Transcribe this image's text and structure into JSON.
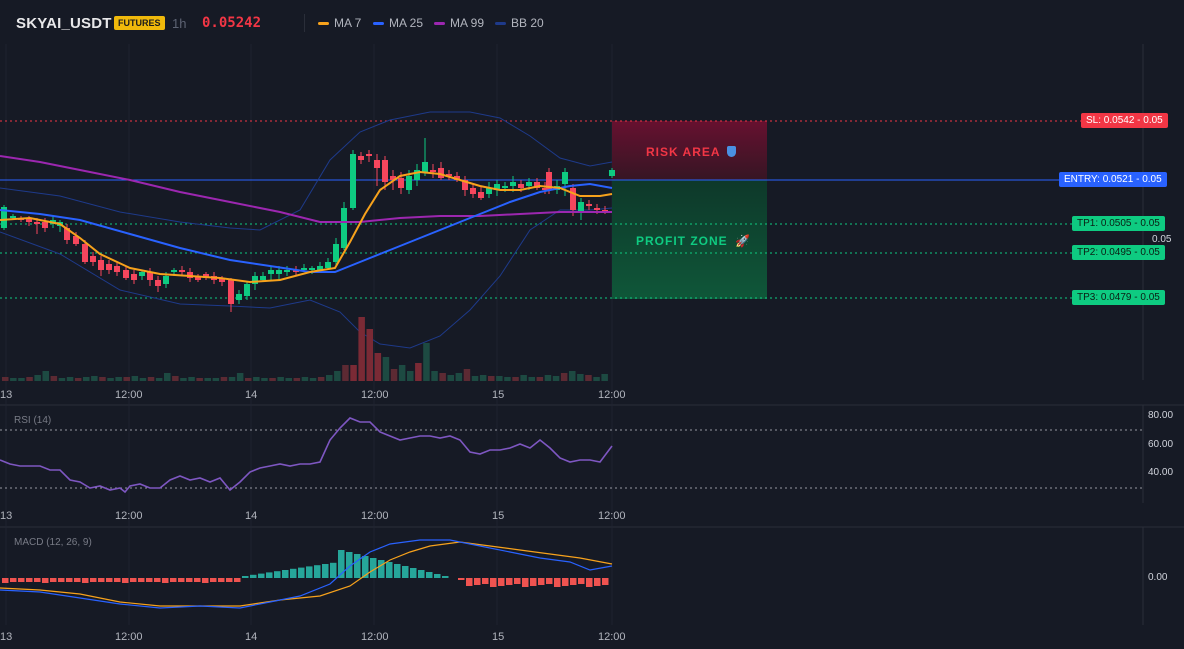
{
  "header": {
    "symbol": "SKYAI_USDT",
    "market_badge": "FUTURES",
    "timeframe": "1h",
    "last_price": "0.05242",
    "indicators": [
      {
        "label": "MA 7",
        "color": "#f7a21c"
      },
      {
        "label": "MA 25",
        "color": "#2962ff"
      },
      {
        "label": "MA 99",
        "color": "#9c27b0"
      },
      {
        "label": "BB 20",
        "color": "#1e3a8a"
      }
    ]
  },
  "trade_levels": {
    "sl": "SL: 0.0542",
    "entry": "ENTRY: 0.0521",
    "tp1": "TP1: 0.0505",
    "tp2": "TP2: 0.0495",
    "tp3": "TP3: 0.0479",
    "price_axis_suffix": "0.05",
    "risk_zone_label": "RISK AREA",
    "profit_zone_label": "PROFIT ZONE",
    "colors": {
      "sl": "#f23645",
      "entry": "#2962ff",
      "tp": "#0ecb81"
    }
  },
  "time_axis": [
    "13",
    "12:00",
    "14",
    "12:00",
    "15",
    "12:00"
  ],
  "rsi": {
    "label": "RSI (14)",
    "levels": [
      "80.00",
      "60.00",
      "40.00"
    ],
    "color": "#7e57c2"
  },
  "macd": {
    "label": "MACD (12, 26, 9)",
    "zero_label": "0.00",
    "macd_color": "#2962ff",
    "signal_color": "#f7a21c",
    "hist_up_color": "#26a69a",
    "hist_down_color": "#ef5350"
  },
  "candle_colors": {
    "up": "#0ecb81",
    "down": "#f6465d"
  }
}
